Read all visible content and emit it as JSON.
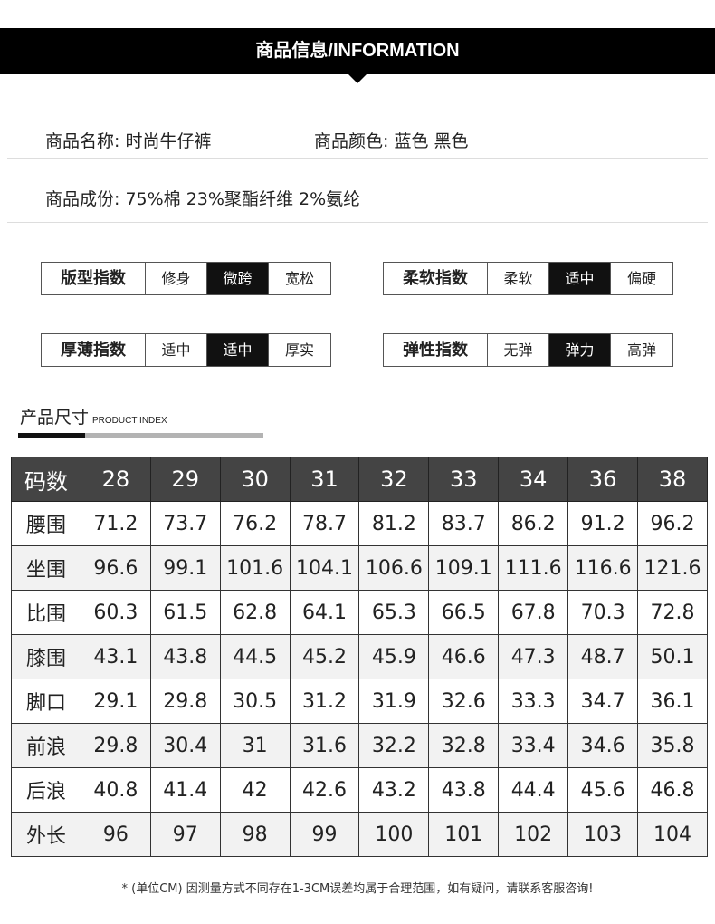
{
  "header": {
    "title": "商品信息/INFORMATION"
  },
  "info": {
    "name": "商品名称: 时尚牛仔裤",
    "color": "商品颜色: 蓝色 黑色",
    "material": "商品成份: 75%棉 23%聚酯纤维 2%氨纶"
  },
  "indices": [
    {
      "label": "版型指数",
      "options": [
        "修身",
        "微跨",
        "宽松"
      ],
      "selected": 1
    },
    {
      "label": "柔软指数",
      "options": [
        "柔软",
        "适中",
        "偏硬"
      ],
      "selected": 1
    },
    {
      "label": "厚薄指数",
      "options": [
        "适中",
        "适中",
        "厚实"
      ],
      "selected": 1
    },
    {
      "label": "弹性指数",
      "options": [
        "无弹",
        "弹力",
        "高弹"
      ],
      "selected": 1
    }
  ],
  "size_section": {
    "title": "产品尺寸",
    "subtitle": "PRODUCT INDEX"
  },
  "table": {
    "header": [
      "码数",
      "28",
      "29",
      "30",
      "31",
      "32",
      "33",
      "34",
      "36",
      "38"
    ],
    "rows": [
      [
        "腰围",
        "71.2",
        "73.7",
        "76.2",
        "78.7",
        "81.2",
        "83.7",
        "86.2",
        "91.2",
        "96.2"
      ],
      [
        "坐围",
        "96.6",
        "99.1",
        "101.6",
        "104.1",
        "106.6",
        "109.1",
        "111.6",
        "116.6",
        "121.6"
      ],
      [
        "比围",
        "60.3",
        "61.5",
        "62.8",
        "64.1",
        "65.3",
        "66.5",
        "67.8",
        "70.3",
        "72.8"
      ],
      [
        "膝围",
        "43.1",
        "43.8",
        "44.5",
        "45.2",
        "45.9",
        "46.6",
        "47.3",
        "48.7",
        "50.1"
      ],
      [
        "脚口",
        "29.1",
        "29.8",
        "30.5",
        "31.2",
        "31.9",
        "32.6",
        "33.3",
        "34.7",
        "36.1"
      ],
      [
        "前浪",
        "29.8",
        "30.4",
        "31",
        "31.6",
        "32.2",
        "32.8",
        "33.4",
        "34.6",
        "35.8"
      ],
      [
        "后浪",
        "40.8",
        "41.4",
        "42",
        "42.6",
        "43.2",
        "43.8",
        "44.4",
        "45.6",
        "46.8"
      ],
      [
        "外长",
        "96",
        "97",
        "98",
        "99",
        "100",
        "101",
        "102",
        "103",
        "104"
      ]
    ]
  },
  "note": "* (单位CM) 因测量方式不同存在1-3CM误差均属于合理范围，如有疑问，请联系客服咨询!"
}
